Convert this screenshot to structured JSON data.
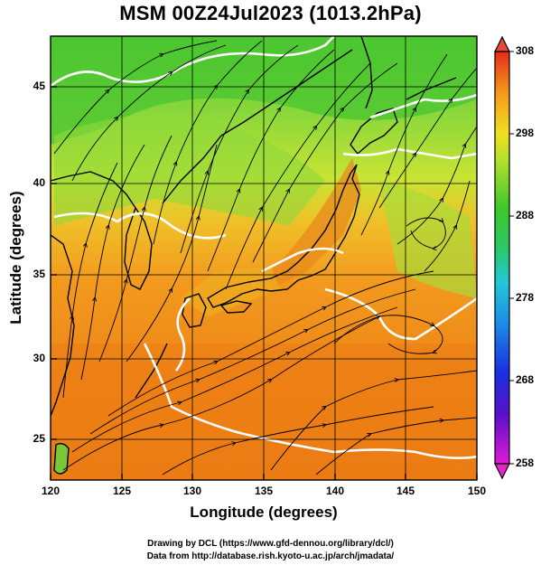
{
  "title": "MSM 00Z24Jul2023 (1013.2hPa)",
  "xlabel": "Longitude (degrees)",
  "ylabel": "Latitude  (degrees)",
  "x_ticks": [
    "120",
    "125",
    "130",
    "135",
    "140",
    "145",
    "150"
  ],
  "y_ticks": [
    "25",
    "30",
    "35",
    "40",
    "45"
  ],
  "colorbar_ticks": [
    "258",
    "268",
    "278",
    "288",
    "298",
    "308"
  ],
  "credit_line1": "Drawing by DCL (https://www.gfd-dennou.org/library/dcl/)",
  "credit_line2": "Data from http://database.rish.kyoto-u.ac.jp/arch/jmadata/",
  "map_extent": {
    "lon": [
      120,
      150
    ],
    "lat": [
      22.4,
      47.6
    ]
  },
  "colorbar_range": [
    258,
    308
  ],
  "colors": {
    "warm": "#f08a16",
    "hot": "#e8700e",
    "mild": "#f0a020",
    "cool": "#88d838",
    "cold": "#3fbf30",
    "contour": "#ffffff",
    "streamline": "#000000"
  }
}
